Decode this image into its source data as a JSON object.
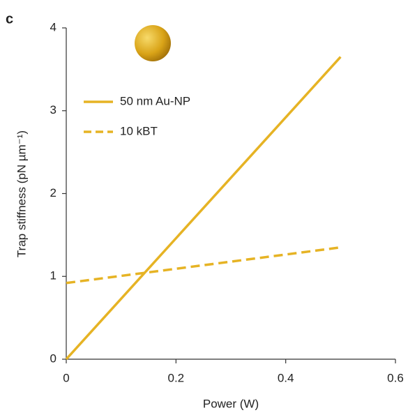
{
  "chart_data": {
    "type": "line",
    "panel_label": "c",
    "x_label": "Power (W)",
    "y_label": "Trap stiffness (pN µm⁻¹)",
    "x": [
      0,
      0.5
    ],
    "series": [
      {
        "name": "50 nm Au-NP",
        "color": "#e6b324",
        "dash": false,
        "values": [
          0,
          3.65
        ]
      },
      {
        "name": "10 kBT",
        "color": "#e6b324",
        "dash": true,
        "values": [
          0.92,
          1.35
        ]
      }
    ],
    "xlim": [
      0,
      0.6
    ],
    "xticks": [
      0,
      0.2,
      0.4,
      0.6
    ],
    "ylim": [
      0,
      4
    ],
    "yticks": [
      0,
      1,
      2,
      3,
      4
    ],
    "grid": false,
    "legend": "upper left"
  }
}
